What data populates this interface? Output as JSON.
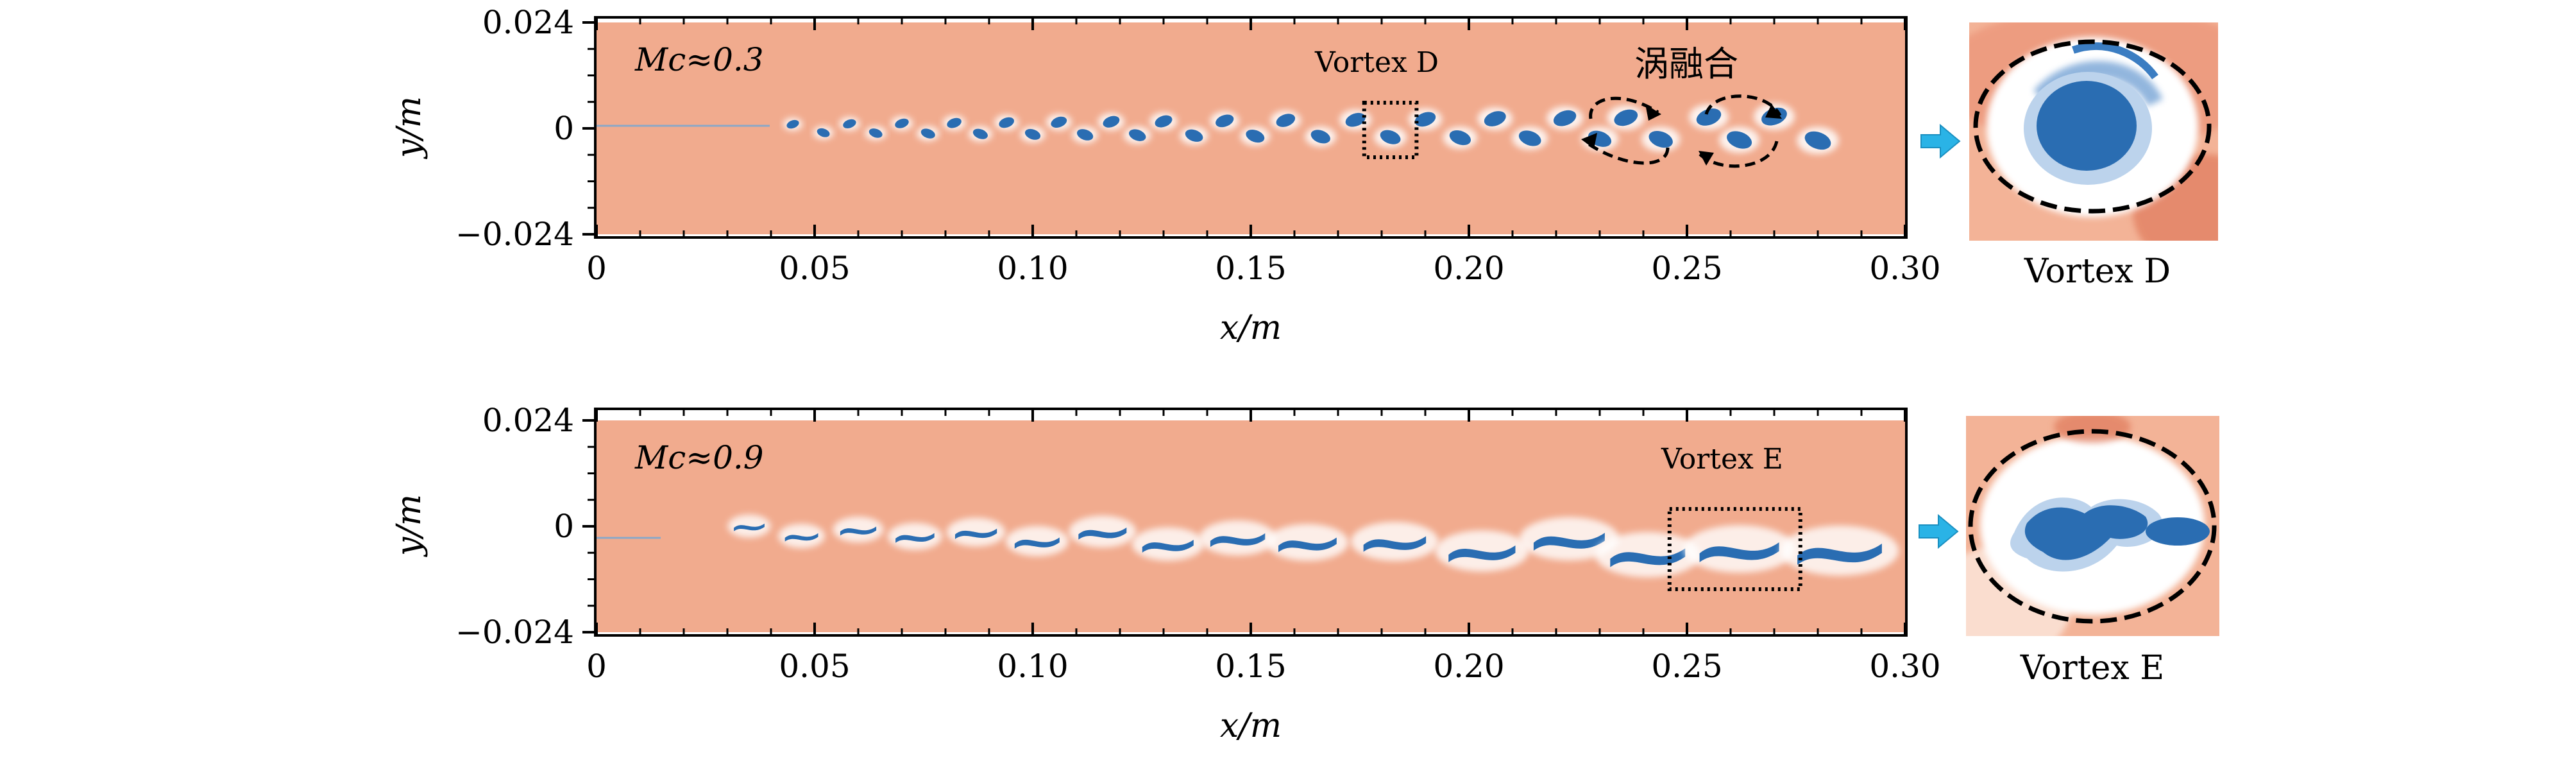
{
  "chart_data": [
    {
      "type": "heatmap",
      "annotation": "Mc≈0.3",
      "xlabel": "x/m",
      "ylabel": "y/m",
      "xlim": [
        0,
        0.3
      ],
      "ylim": [
        -0.024,
        0.024
      ],
      "x_ticks": [
        "0",
        "0.05",
        "0.10",
        "0.15",
        "0.20",
        "0.25",
        "0.30"
      ],
      "x_tick_values": [
        0,
        0.05,
        0.1,
        0.15,
        0.2,
        0.25,
        0.3
      ],
      "y_ticks": [
        "0.024",
        "0",
        "−0.024"
      ],
      "y_tick_values": [
        0.024,
        0,
        -0.024
      ],
      "box_label": "Vortex D",
      "box_range_x": [
        0.176,
        0.188
      ],
      "merge_label": "涡融合",
      "inset_label": "Vortex D",
      "vortices_x": [
        0.045,
        0.052,
        0.058,
        0.064,
        0.07,
        0.076,
        0.082,
        0.088,
        0.094,
        0.1,
        0.106,
        0.112,
        0.118,
        0.124,
        0.13,
        0.137,
        0.144,
        0.151,
        0.158,
        0.166,
        0.174,
        0.182,
        0.19,
        0.198,
        0.206,
        0.214,
        0.222,
        0.23,
        0.236,
        0.244,
        0.255,
        0.262,
        0.27,
        0.28
      ]
    },
    {
      "type": "heatmap",
      "annotation": "Mc≈0.9",
      "xlabel": "x/m",
      "ylabel": "y/m",
      "xlim": [
        0,
        0.3
      ],
      "ylim": [
        -0.024,
        0.024
      ],
      "x_ticks": [
        "0",
        "0.05",
        "0.10",
        "0.15",
        "0.20",
        "0.25",
        "0.30"
      ],
      "x_tick_values": [
        0,
        0.05,
        0.1,
        0.15,
        0.2,
        0.25,
        0.3
      ],
      "y_ticks": [
        "0.024",
        "0",
        "−0.024"
      ],
      "y_tick_values": [
        0.024,
        0,
        -0.024
      ],
      "box_label": "Vortex E",
      "box_range_x": [
        0.246,
        0.276
      ],
      "inset_label": "Vortex E",
      "vortices_x": [
        0.035,
        0.047,
        0.06,
        0.073,
        0.087,
        0.101,
        0.116,
        0.131,
        0.147,
        0.163,
        0.183,
        0.203,
        0.223,
        0.241,
        0.262,
        0.285
      ]
    }
  ],
  "colors": {
    "background_field": "#f1ab8e",
    "vortex_core": "#2a6db2",
    "vortex_halo": "#ffffff",
    "arrow": "#2ab3e6"
  }
}
